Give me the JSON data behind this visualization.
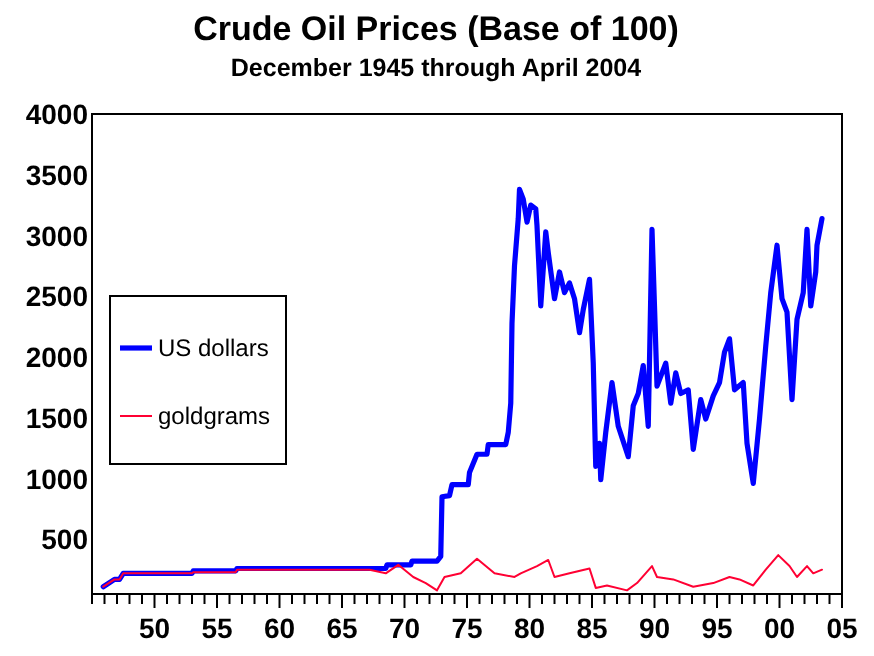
{
  "chart_data": {
    "type": "line",
    "title": "Crude Oil Prices (Base of 100)",
    "subtitle": "December 1945 through April 2004",
    "xlim": [
      1945,
      2005
    ],
    "ylim": [
      50,
      4000
    ],
    "xticks": [
      {
        "value": 1945,
        "label": null
      },
      {
        "value": 1946,
        "label": null
      },
      {
        "value": 1947,
        "label": null
      },
      {
        "value": 1948,
        "label": null
      },
      {
        "value": 1949,
        "label": null
      },
      {
        "value": 1950,
        "label": "50"
      },
      {
        "value": 1951,
        "label": null
      },
      {
        "value": 1952,
        "label": null
      },
      {
        "value": 1953,
        "label": null
      },
      {
        "value": 1954,
        "label": null
      },
      {
        "value": 1955,
        "label": "55"
      },
      {
        "value": 1956,
        "label": null
      },
      {
        "value": 1957,
        "label": null
      },
      {
        "value": 1958,
        "label": null
      },
      {
        "value": 1959,
        "label": null
      },
      {
        "value": 1960,
        "label": "60"
      },
      {
        "value": 1961,
        "label": null
      },
      {
        "value": 1962,
        "label": null
      },
      {
        "value": 1963,
        "label": null
      },
      {
        "value": 1964,
        "label": null
      },
      {
        "value": 1965,
        "label": "65"
      },
      {
        "value": 1966,
        "label": null
      },
      {
        "value": 1967,
        "label": null
      },
      {
        "value": 1968,
        "label": null
      },
      {
        "value": 1969,
        "label": null
      },
      {
        "value": 1970,
        "label": "70"
      },
      {
        "value": 1971,
        "label": null
      },
      {
        "value": 1972,
        "label": null
      },
      {
        "value": 1973,
        "label": null
      },
      {
        "value": 1974,
        "label": null
      },
      {
        "value": 1975,
        "label": "75"
      },
      {
        "value": 1976,
        "label": null
      },
      {
        "value": 1977,
        "label": null
      },
      {
        "value": 1978,
        "label": null
      },
      {
        "value": 1979,
        "label": null
      },
      {
        "value": 1980,
        "label": "80"
      },
      {
        "value": 1981,
        "label": null
      },
      {
        "value": 1982,
        "label": null
      },
      {
        "value": 1983,
        "label": null
      },
      {
        "value": 1984,
        "label": null
      },
      {
        "value": 1985,
        "label": "85"
      },
      {
        "value": 1986,
        "label": null
      },
      {
        "value": 1987,
        "label": null
      },
      {
        "value": 1988,
        "label": null
      },
      {
        "value": 1989,
        "label": null
      },
      {
        "value": 1990,
        "label": "90"
      },
      {
        "value": 1991,
        "label": null
      },
      {
        "value": 1992,
        "label": null
      },
      {
        "value": 1993,
        "label": null
      },
      {
        "value": 1994,
        "label": null
      },
      {
        "value": 1995,
        "label": "95"
      },
      {
        "value": 1996,
        "label": null
      },
      {
        "value": 1997,
        "label": null
      },
      {
        "value": 1998,
        "label": null
      },
      {
        "value": 1999,
        "label": null
      },
      {
        "value": 2000,
        "label": "00"
      },
      {
        "value": 2001,
        "label": null
      },
      {
        "value": 2002,
        "label": null
      },
      {
        "value": 2003,
        "label": null
      },
      {
        "value": 2004,
        "label": null
      },
      {
        "value": 2005,
        "label": "05"
      }
    ],
    "yticks": [
      500,
      1000,
      1500,
      2000,
      2500,
      3000,
      3500,
      4000
    ],
    "legend": "left",
    "grid": false,
    "line_style": "solid",
    "series": [
      {
        "name": "US dollars",
        "color": "#0000ff",
        "x": [
          1945.9,
          1946.8,
          1947.2,
          1947.5,
          1953.0,
          1953.1,
          1956.5,
          1956.6,
          1968.5,
          1968.6,
          1970.5,
          1970.6,
          1972.6,
          1972.9,
          1973.0,
          1973.6,
          1973.8,
          1975.1,
          1975.2,
          1975.8,
          1976.6,
          1976.7,
          1978.1,
          1978.3,
          1978.5,
          1978.6,
          1978.8,
          1979.1,
          1979.2,
          1979.5,
          1979.8,
          1980.1,
          1980.5,
          1980.6,
          1980.9,
          1981.3,
          1981.5,
          1982.0,
          1982.4,
          1982.8,
          1983.2,
          1983.6,
          1984.0,
          1984.3,
          1984.8,
          1985.1,
          1985.3,
          1985.6,
          1985.7,
          1986.1,
          1986.6,
          1987.1,
          1987.9,
          1988.3,
          1988.7,
          1989.1,
          1989.5,
          1989.8,
          1990.0,
          1990.2,
          1990.9,
          1991.3,
          1991.7,
          1992.1,
          1992.7,
          1993.1,
          1993.7,
          1994.1,
          1994.7,
          1995.2,
          1995.6,
          1996.0,
          1996.4,
          1997.1,
          1997.4,
          1997.9,
          1998.4,
          1998.9,
          1999.3,
          1999.8,
          2000.2,
          2000.6,
          2001.0,
          2001.4,
          2001.9,
          2002.2,
          2002.5,
          2002.9,
          2003.0,
          2003.4
        ],
        "values": [
          110,
          170,
          170,
          220,
          220,
          240,
          240,
          260,
          260,
          290,
          290,
          320,
          320,
          360,
          850,
          860,
          950,
          950,
          1050,
          1200,
          1200,
          1280,
          1280,
          1380,
          1620,
          2280,
          2750,
          3140,
          3380,
          3300,
          3110,
          3250,
          3220,
          3080,
          2420,
          3030,
          2860,
          2480,
          2700,
          2530,
          2610,
          2480,
          2200,
          2390,
          2640,
          1950,
          1100,
          1290,
          990,
          1380,
          1790,
          1430,
          1180,
          1600,
          1700,
          1930,
          1430,
          3050,
          2420,
          1760,
          1950,
          1620,
          1870,
          1700,
          1730,
          1240,
          1650,
          1490,
          1680,
          1790,
          2040,
          2150,
          1730,
          1790,
          1290,
          960,
          1490,
          2090,
          2530,
          2920,
          2480,
          2370,
          1650,
          2310,
          2530,
          3050,
          2420,
          2700,
          2920,
          3140
        ]
      },
      {
        "name": "goldgrams",
        "color": "#ff0033",
        "x": [
          1945.9,
          1946.8,
          1947.2,
          1947.5,
          1953.0,
          1953.1,
          1956.5,
          1956.6,
          1967.2,
          1968.5,
          1969.5,
          1970.7,
          1971.7,
          1972.6,
          1973.2,
          1974.5,
          1975.8,
          1977.2,
          1978.8,
          1979.3,
          1980.6,
          1981.5,
          1982.0,
          1983.2,
          1984.8,
          1985.3,
          1986.2,
          1987.8,
          1988.6,
          1989.8,
          1990.2,
          1991.5,
          1993.1,
          1994.7,
          1996.0,
          1996.8,
          1997.9,
          1998.9,
          1999.9,
          2000.8,
          2001.4,
          2002.2,
          2002.7,
          2003.4
        ],
        "values": [
          110,
          170,
          170,
          220,
          220,
          230,
          230,
          250,
          250,
          220,
          290,
          190,
          140,
          80,
          190,
          220,
          340,
          220,
          190,
          220,
          280,
          330,
          190,
          220,
          260,
          100,
          120,
          80,
          140,
          280,
          190,
          170,
          110,
          140,
          190,
          170,
          120,
          250,
          370,
          280,
          190,
          280,
          220,
          250
        ]
      }
    ]
  }
}
